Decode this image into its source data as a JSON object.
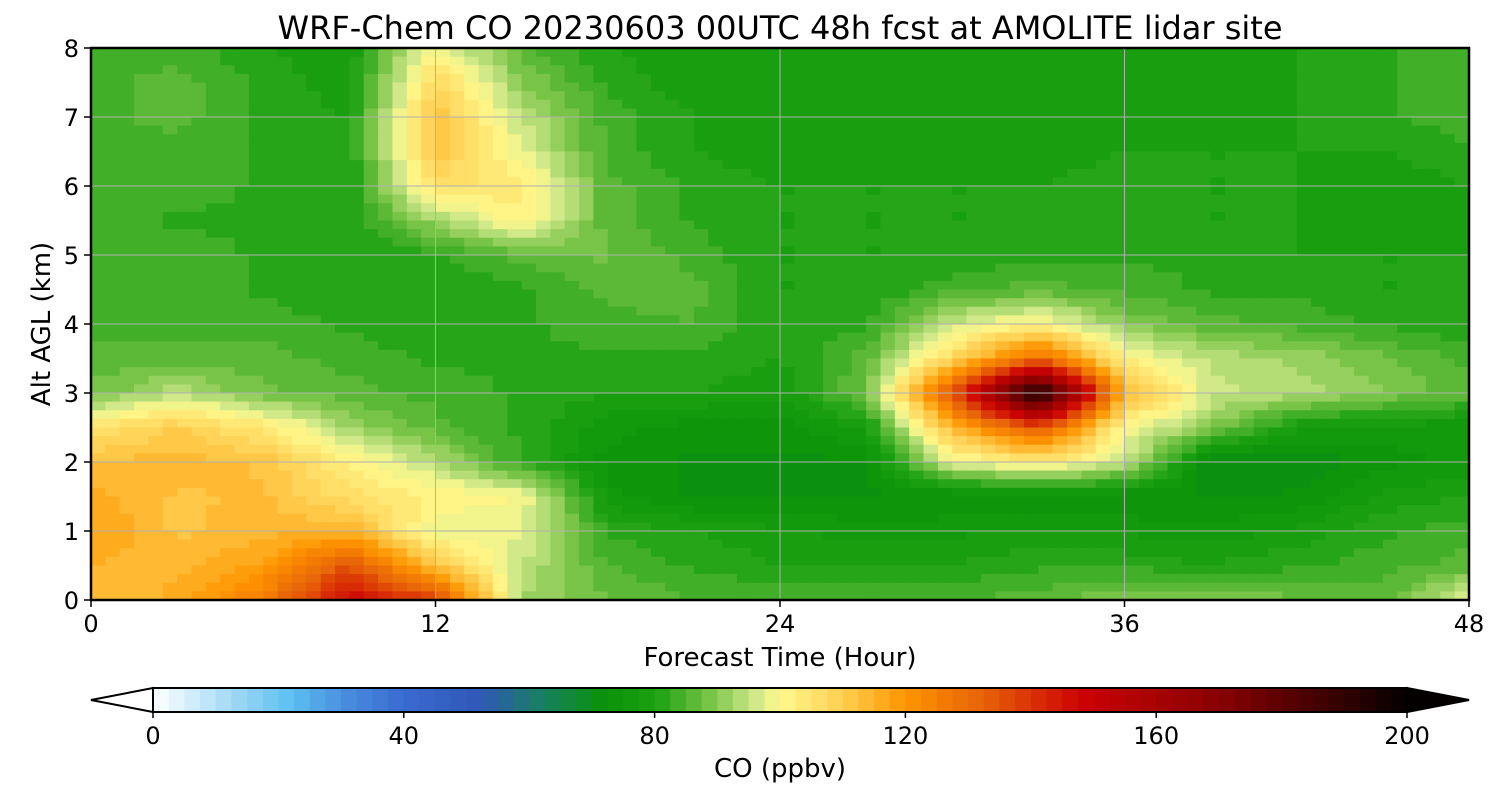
{
  "chart_data": {
    "type": "heatmap",
    "title": "WRF-Chem CO  20230603 00UTC 48h fcst at AMOLITE lidar site",
    "xlabel": "Forecast Time (Hour)",
    "ylabel": "Alt AGL (km)",
    "xlim": [
      0,
      48
    ],
    "ylim": [
      0,
      8
    ],
    "xticks": [
      0,
      12,
      24,
      36,
      48
    ],
    "yticks": [
      0,
      1,
      2,
      3,
      4,
      5,
      6,
      7,
      8
    ],
    "grid": true,
    "x": [
      0,
      3,
      6,
      9,
      12,
      15,
      18,
      21,
      24,
      27,
      30,
      33,
      36,
      39,
      42,
      45,
      48
    ],
    "y": [
      0,
      0.5,
      1,
      1.5,
      2,
      2.5,
      3,
      3.5,
      4,
      4.5,
      5,
      5.5,
      6,
      6.5,
      7,
      7.5,
      8
    ],
    "z": [
      [
        112,
        116,
        126,
        148,
        138,
        92,
        88,
        85,
        85,
        84,
        85,
        86,
        90,
        90,
        88,
        86,
        98
      ],
      [
        115,
        114,
        118,
        135,
        112,
        95,
        85,
        82,
        80,
        80,
        80,
        82,
        82,
        80,
        82,
        84,
        86
      ],
      [
        118,
        112,
        114,
        115,
        98,
        98,
        82,
        80,
        78,
        76,
        77,
        78,
        77,
        76,
        78,
        82,
        84
      ],
      [
        116,
        112,
        113,
        106,
        102,
        100,
        76,
        72,
        72,
        72,
        72,
        73,
        72,
        72,
        73,
        78,
        80
      ],
      [
        112,
        114,
        112,
        102,
        94,
        82,
        74,
        72,
        72,
        72,
        98,
        104,
        96,
        70,
        70,
        74,
        76
      ],
      [
        105,
        110,
        104,
        92,
        86,
        82,
        76,
        74,
        74,
        78,
        115,
        135,
        100,
        90,
        78,
        76,
        76
      ],
      [
        88,
        94,
        88,
        86,
        84,
        82,
        80,
        80,
        78,
        88,
        135,
        198,
        115,
        96,
        94,
        90,
        86
      ],
      [
        86,
        86,
        86,
        84,
        82,
        82,
        82,
        82,
        80,
        86,
        108,
        130,
        102,
        94,
        92,
        88,
        84
      ],
      [
        84,
        84,
        84,
        82,
        80,
        82,
        84,
        85,
        80,
        82,
        96,
        102,
        90,
        86,
        84,
        82,
        80
      ],
      [
        84,
        84,
        82,
        80,
        80,
        82,
        86,
        86,
        80,
        80,
        84,
        86,
        84,
        82,
        82,
        80,
        80
      ],
      [
        84,
        84,
        82,
        80,
        82,
        86,
        88,
        84,
        80,
        80,
        80,
        82,
        82,
        82,
        80,
        80,
        80
      ],
      [
        84,
        82,
        82,
        80,
        92,
        102,
        86,
        82,
        80,
        80,
        80,
        80,
        82,
        80,
        80,
        78,
        78
      ],
      [
        84,
        84,
        82,
        80,
        106,
        104,
        86,
        82,
        80,
        80,
        80,
        80,
        82,
        80,
        80,
        78,
        80
      ],
      [
        84,
        84,
        82,
        80,
        112,
        98,
        84,
        80,
        78,
        78,
        78,
        78,
        80,
        80,
        80,
        80,
        82
      ],
      [
        84,
        86,
        82,
        80,
        112,
        95,
        84,
        80,
        78,
        78,
        78,
        78,
        78,
        78,
        80,
        82,
        84
      ],
      [
        84,
        86,
        82,
        78,
        108,
        90,
        82,
        78,
        78,
        78,
        78,
        78,
        78,
        78,
        80,
        82,
        84
      ],
      [
        84,
        84,
        80,
        78,
        100,
        86,
        80,
        78,
        78,
        78,
        78,
        78,
        78,
        78,
        80,
        82,
        84
      ]
    ],
    "colorbar": {
      "label": "CO  (ppbv)",
      "ticks": [
        0,
        40,
        80,
        120,
        160,
        200
      ],
      "vmin": 0,
      "vmax": 200,
      "step": 2.5,
      "extend": "both",
      "orientation": "horizontal",
      "placement": "bottom",
      "colors": [
        {
          "v": 0,
          "c": "#ffffff"
        },
        {
          "v": 12,
          "c": "#a6dbf5"
        },
        {
          "v": 22,
          "c": "#5cc0f2"
        },
        {
          "v": 30,
          "c": "#4a8fe0"
        },
        {
          "v": 40,
          "c": "#3a6ad0"
        },
        {
          "v": 52,
          "c": "#2f58b8"
        },
        {
          "v": 62,
          "c": "#178060"
        },
        {
          "v": 72,
          "c": "#0a9208"
        },
        {
          "v": 80,
          "c": "#1aa010"
        },
        {
          "v": 88,
          "c": "#6ec040"
        },
        {
          "v": 96,
          "c": "#cfe88a"
        },
        {
          "v": 100,
          "c": "#fff98c"
        },
        {
          "v": 110,
          "c": "#ffcf50"
        },
        {
          "v": 120,
          "c": "#ff9500"
        },
        {
          "v": 132,
          "c": "#e86408"
        },
        {
          "v": 148,
          "c": "#cc0202"
        },
        {
          "v": 170,
          "c": "#880202"
        },
        {
          "v": 200,
          "c": "#050000"
        }
      ]
    }
  }
}
